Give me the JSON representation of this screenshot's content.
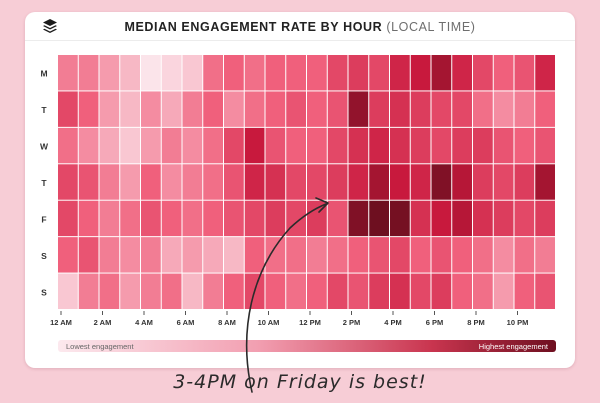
{
  "header": {
    "logo_icon": "stacked-layers-icon",
    "title_main": "MEDIAN ENGAGEMENT RATE BY HOUR",
    "title_sub": "(LOCAL TIME)"
  },
  "chart_data": {
    "type": "heatmap",
    "title": "MEDIAN ENGAGEMENT RATE BY HOUR (LOCAL TIME)",
    "y_categories": [
      "M",
      "T",
      "W",
      "T",
      "F",
      "S",
      "S"
    ],
    "x_hours": 24,
    "x_tick_labels": [
      "12 AM",
      "2 AM",
      "4 AM",
      "6 AM",
      "8 AM",
      "10 AM",
      "12 PM",
      "2 PM",
      "4 PM",
      "6 PM",
      "8 PM",
      "10 PM"
    ],
    "x_tick_every_hours": 2,
    "legend": {
      "low_label": "Lowest engagement",
      "high_label": "Highest engagement",
      "low_color": "#fbe4ea",
      "high_color": "#6e0f20"
    },
    "scale_note": "relative intensity 0 (lowest) to 1 (highest)",
    "values": [
      [
        0.35,
        0.35,
        0.25,
        0.15,
        0.0,
        0.05,
        0.1,
        0.4,
        0.45,
        0.4,
        0.45,
        0.45,
        0.45,
        0.55,
        0.6,
        0.55,
        0.7,
        0.75,
        0.85,
        0.7,
        0.55,
        0.45,
        0.5,
        0.7
      ],
      [
        0.55,
        0.45,
        0.25,
        0.15,
        0.3,
        0.2,
        0.35,
        0.45,
        0.3,
        0.4,
        0.45,
        0.5,
        0.45,
        0.5,
        0.9,
        0.6,
        0.65,
        0.6,
        0.55,
        0.55,
        0.4,
        0.3,
        0.35,
        0.45
      ],
      [
        0.4,
        0.3,
        0.2,
        0.1,
        0.25,
        0.35,
        0.3,
        0.4,
        0.55,
        0.75,
        0.5,
        0.45,
        0.45,
        0.55,
        0.65,
        0.7,
        0.65,
        0.6,
        0.55,
        0.6,
        0.6,
        0.5,
        0.45,
        0.5
      ],
      [
        0.55,
        0.5,
        0.35,
        0.25,
        0.45,
        0.3,
        0.35,
        0.4,
        0.5,
        0.7,
        0.65,
        0.55,
        0.55,
        0.6,
        0.7,
        0.85,
        0.75,
        0.7,
        0.95,
        0.8,
        0.6,
        0.55,
        0.6,
        0.85
      ],
      [
        0.55,
        0.45,
        0.35,
        0.4,
        0.5,
        0.45,
        0.4,
        0.45,
        0.5,
        0.55,
        0.6,
        0.55,
        0.6,
        0.5,
        0.95,
        1.0,
        0.98,
        0.65,
        0.75,
        0.8,
        0.65,
        0.6,
        0.55,
        0.6
      ],
      [
        0.45,
        0.5,
        0.35,
        0.3,
        0.35,
        0.2,
        0.25,
        0.2,
        0.15,
        0.45,
        0.4,
        0.4,
        0.35,
        0.4,
        0.45,
        0.5,
        0.55,
        0.45,
        0.5,
        0.45,
        0.4,
        0.3,
        0.4,
        0.35
      ],
      [
        0.1,
        0.35,
        0.4,
        0.25,
        0.35,
        0.4,
        0.15,
        0.35,
        0.45,
        0.55,
        0.45,
        0.4,
        0.45,
        0.55,
        0.5,
        0.6,
        0.65,
        0.55,
        0.6,
        0.45,
        0.4,
        0.25,
        0.45,
        0.5
      ]
    ]
  },
  "annotation": {
    "caption": "3-4PM on Friday is best!"
  }
}
